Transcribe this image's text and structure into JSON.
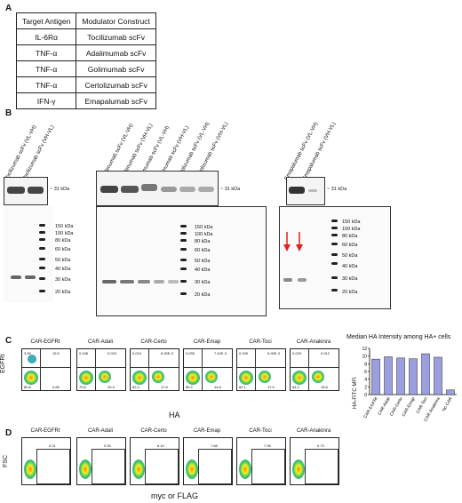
{
  "panels": {
    "a": "A",
    "b": "B",
    "c": "C",
    "d": "D"
  },
  "table": {
    "headers": [
      "Target Antigen",
      "Modulator Construct"
    ],
    "rows": [
      [
        "IL-6Rα",
        "Tocilizumab scFv"
      ],
      [
        "TNF-α",
        "Adalimumab scFv"
      ],
      [
        "TNF-α",
        "Golimumab scFv"
      ],
      [
        "TNF-α",
        "Certolizumab scFv"
      ],
      [
        "IFN-γ",
        "Emapalumab scFv"
      ]
    ]
  },
  "gels": {
    "lanes_left": [
      "Tocilizumab scFv (VL-VH)",
      "Tocilizumab scFv (VH-VL)"
    ],
    "lanes_mid": [
      "Adalimumab scFv (VL-VH)",
      "Adalimumab scFv (VH-VL)",
      "Golimumab scFv (VL-VH)",
      "Golimumab scFv (VH-VL)",
      "Certolizumab scFv (VL-VH)",
      "Certolizumab scFv (VH-VL)"
    ],
    "lanes_right": [
      "Emapalumab scFv (VL-VH)",
      "Emapalumab scFv (VH-VL)"
    ],
    "band_label": "~ 31 kDa",
    "ladder": [
      "150 kDa",
      "100 kDa",
      "80 kDa",
      "60 kDa",
      "50 kDa",
      "40 kDa",
      "30 kDa",
      "20 kDa"
    ]
  },
  "facs_c": {
    "samples": [
      "CAR-EGFRt",
      "CAR-Adali",
      "CAR-Certo",
      "CAR-Emap",
      "CAR-Toci",
      "CAR-Anakinra"
    ],
    "q_ul": [
      "3.99",
      "0.048",
      "0.019",
      "0.035",
      "0.039",
      "0.029"
    ],
    "q_ur": [
      "15.5",
      "0.023",
      "6.39E-3",
      "7.42E-3",
      "6.90E-3",
      "0.012"
    ],
    "q_ll": [
      "80.8",
      "79.6",
      "82.4",
      "85.2",
      "82.1",
      "84.2"
    ],
    "q_lr": [
      "0.65",
      "20.3",
      "17.6",
      "14.8",
      "17.9",
      "15.8"
    ],
    "ylabel": "EGFRt",
    "xlabel": "HA"
  },
  "bar_chart": {
    "title": "Median HA Intensity among HA+ cells",
    "ylabel": "HA-FITC MFI"
  },
  "chart_data": {
    "type": "bar",
    "title": "Median HA Intensity among HA+ cells",
    "ylabel": "HA-FITC MFI",
    "categories": [
      "CAR-EGFRt",
      "CAR-Adali",
      "CAR-Certo",
      "CAR-Emap",
      "CAR-Toci",
      "CAR-Anakinra",
      "No CAR"
    ],
    "values": [
      9.2,
      9.8,
      9.5,
      9.3,
      10.6,
      9.7,
      1.2
    ],
    "ylim": [
      0,
      12
    ],
    "yticks": [
      0,
      2,
      4,
      6,
      8,
      10,
      12
    ],
    "bar_color": "#9b9fe0"
  },
  "facs_d": {
    "samples": [
      "CAR-EGFRt",
      "CAR-Adali",
      "CAR-Certo",
      "CAR-Emap",
      "CAR-Toci",
      "CAR-Anakinra"
    ],
    "gate": [
      "0.21",
      "0.34",
      "8.10",
      "7.68",
      "7.95",
      "0.73"
    ],
    "ylabel": "FSC",
    "xlabel": "myc or FLAG"
  }
}
